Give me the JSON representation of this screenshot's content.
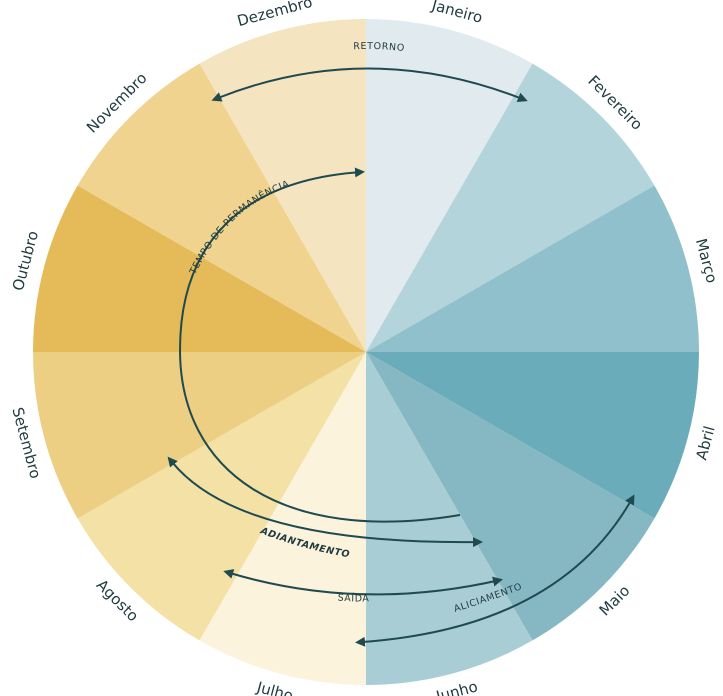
{
  "months": [
    "Janeiro",
    "Fevereiro",
    "Março",
    "Abril",
    "Maio",
    "Junho",
    "Julho",
    "Agosto",
    "Setembro",
    "Outubro",
    "Novembro",
    "Dezembro"
  ],
  "colors": {
    "slices": [
      "#e1ebef",
      "#b4d4db",
      "#8fc0cb",
      "#6aacb9",
      "#86b8c4",
      "#a9cdd5",
      "#fbf3dc",
      "#f3e1a6",
      "#eccf82",
      "#e4bb58",
      "#efd38e",
      "#f4e4bf"
    ],
    "arrows": "#1f4a50"
  },
  "arrows": {
    "retorno": "RETORNO",
    "tempo_de_permanencia": "TEMPO DE PERMANÊNCIA",
    "adiantamento": "ADIANTAMENTO",
    "saida": "SAÍDA",
    "aliciamento": "ALICIAMENTO"
  }
}
